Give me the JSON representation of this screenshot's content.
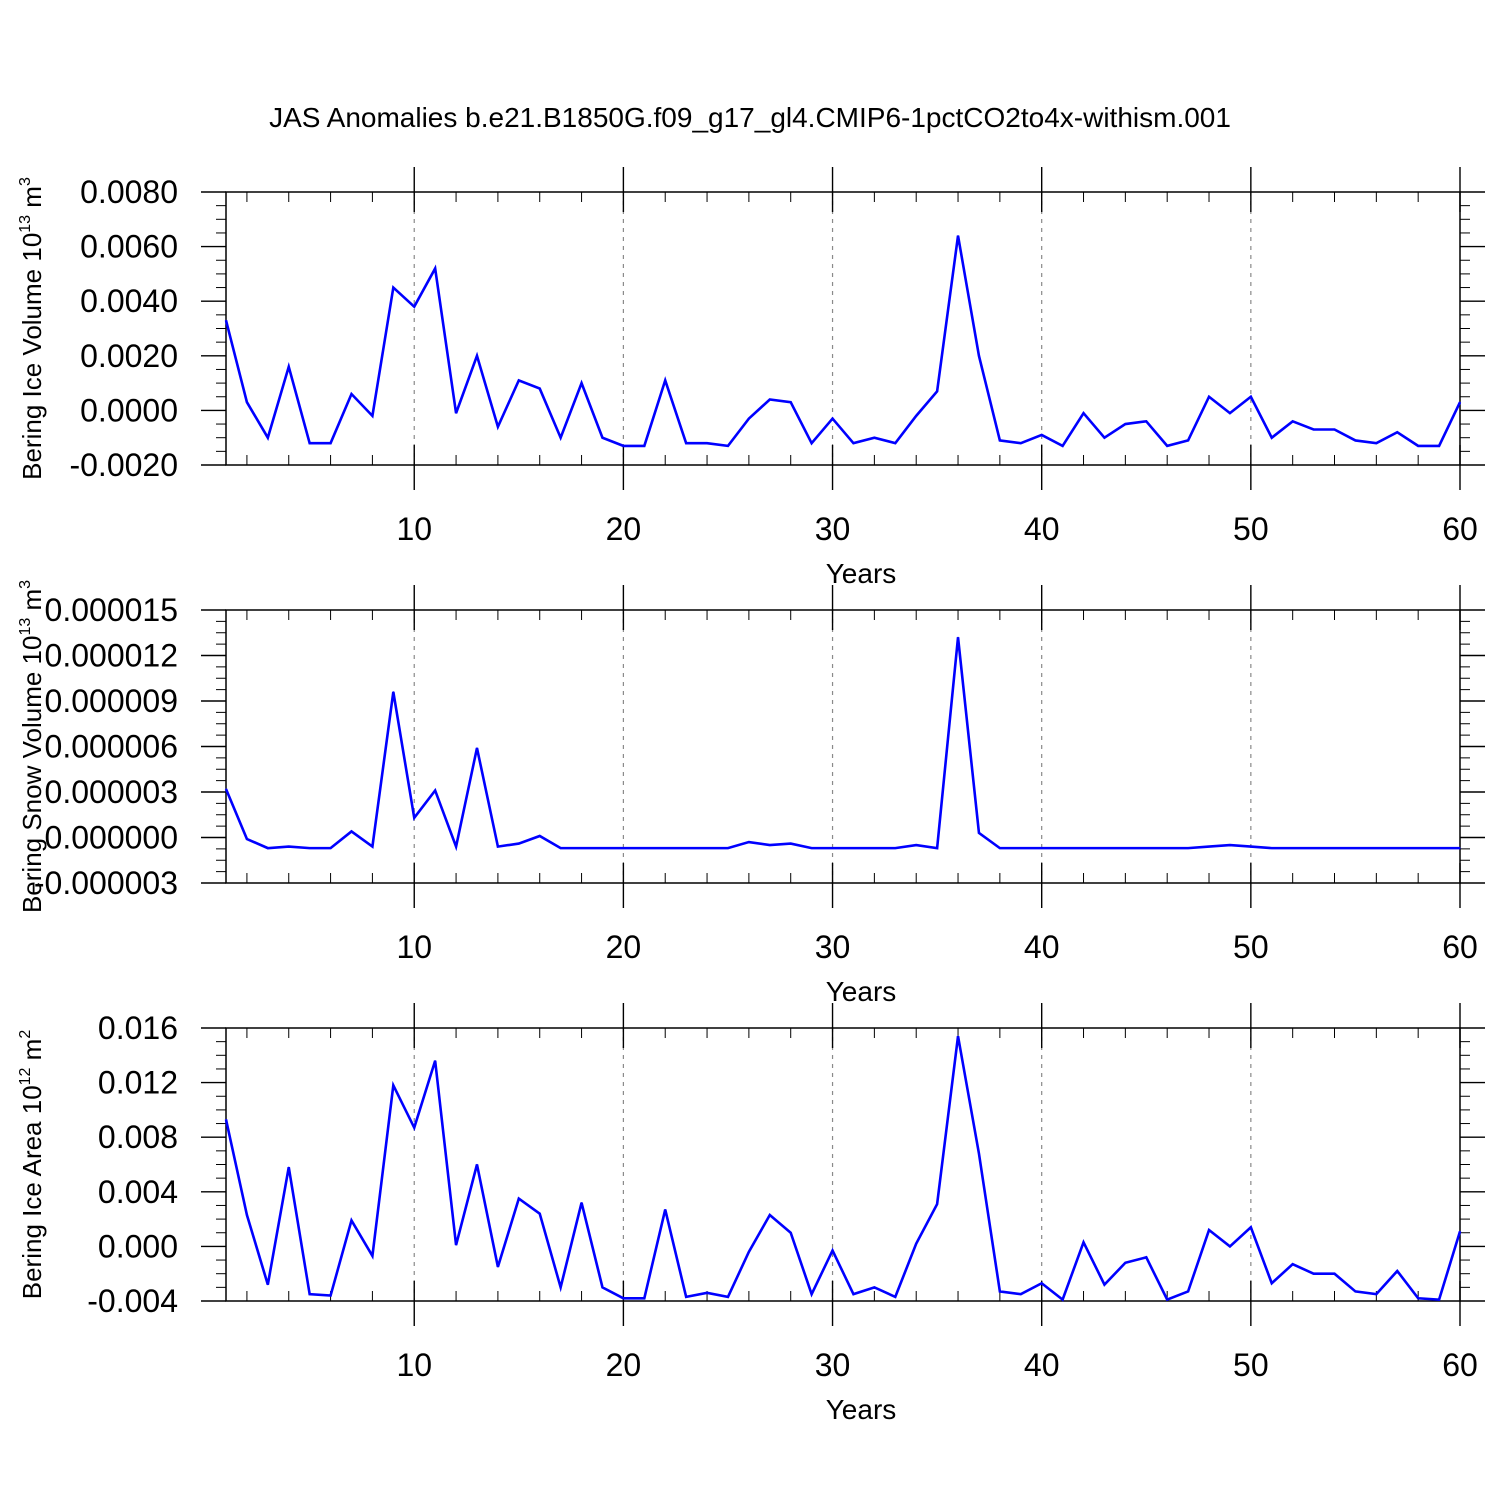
{
  "figure": {
    "title": "JAS Anomalies b.e21.B1850G.f09_g17_gl4.CMIP6-1pctCO2to4x-withism.001"
  },
  "chart_data": [
    {
      "type": "line",
      "title": "",
      "xlabel": "Years",
      "ylabel": {
        "main": "Bering Ice Volume 10",
        "exponent": "13",
        "unit": " m",
        "unit_exponent": "3"
      },
      "xlim": [
        1,
        60
      ],
      "ylim": [
        -0.002,
        0.008
      ],
      "x_ticks": [
        10,
        20,
        30,
        40,
        50,
        60
      ],
      "x_tick_labels": [
        "10",
        "20",
        "30",
        "40",
        "50",
        "60"
      ],
      "y_ticks": [
        -0.002,
        0,
        0.002,
        0.004,
        0.006,
        0.008
      ],
      "y_tick_labels": [
        "-0.0020",
        "0.0000",
        "0.0020",
        "0.0040",
        "0.0060",
        "0.0080"
      ],
      "y_minor_step": 0.0005,
      "x_minor_step": 2,
      "grid": "vertical dashed at major x ticks",
      "line_color": "#0000ff",
      "series": [
        {
          "x": [
            1,
            2,
            3,
            4,
            5,
            6,
            7,
            8,
            9,
            10,
            11,
            12,
            13,
            14,
            15,
            16,
            17,
            18,
            19,
            20,
            21,
            22,
            23,
            24,
            25,
            26,
            27,
            28,
            29,
            30,
            31,
            32,
            33,
            34,
            35,
            36,
            37,
            38,
            39,
            40,
            41,
            42,
            43,
            44,
            45,
            46,
            47,
            48,
            49,
            50,
            51,
            52,
            53,
            54,
            55,
            56,
            57,
            58,
            59,
            60
          ],
          "values": [
            0.0033,
            0.0003,
            -0.001,
            0.0016,
            -0.0012,
            -0.0012,
            0.0006,
            -0.0002,
            0.0045,
            0.0038,
            0.0052,
            -0.0001,
            0.002,
            -0.0006,
            0.0011,
            0.0008,
            -0.001,
            0.001,
            -0.001,
            -0.0013,
            -0.0013,
            0.0011,
            -0.0012,
            -0.0012,
            -0.0013,
            -0.0003,
            0.0004,
            0.0003,
            -0.0012,
            -0.0003,
            -0.0012,
            -0.001,
            -0.0012,
            -0.0002,
            0.0007,
            0.0064,
            0.002,
            -0.0011,
            -0.0012,
            -0.0009,
            -0.0013,
            -0.0001,
            -0.001,
            -0.0005,
            -0.0004,
            -0.0013,
            -0.0011,
            0.0005,
            -0.0001,
            0.0005,
            -0.001,
            -0.0004,
            -0.0007,
            -0.0007,
            -0.0011,
            -0.0012,
            -0.0008,
            -0.0013,
            -0.0013,
            0.0003
          ]
        }
      ]
    },
    {
      "type": "line",
      "title": "",
      "xlabel": "Years",
      "ylabel": {
        "main": "Bering Snow Volume 10",
        "exponent": "13",
        "unit": " m",
        "unit_exponent": "3"
      },
      "xlim": [
        1,
        60
      ],
      "ylim": [
        -3e-06,
        1.5e-05
      ],
      "x_ticks": [
        10,
        20,
        30,
        40,
        50,
        60
      ],
      "x_tick_labels": [
        "10",
        "20",
        "30",
        "40",
        "50",
        "60"
      ],
      "y_ticks": [
        -3e-06,
        0,
        3e-06,
        6e-06,
        9e-06,
        1.2e-05,
        1.5e-05
      ],
      "y_tick_labels": [
        "-0.000003",
        "0.000000",
        "0.000003",
        "0.000006",
        "0.000009",
        "0.000012",
        "0.000015"
      ],
      "y_minor_step": 7.5e-07,
      "x_minor_step": 2,
      "grid": "vertical dashed at major x ticks",
      "line_color": "#0000ff",
      "series": [
        {
          "x": [
            1,
            2,
            3,
            4,
            5,
            6,
            7,
            8,
            9,
            10,
            11,
            12,
            13,
            14,
            15,
            16,
            17,
            18,
            19,
            20,
            21,
            22,
            23,
            24,
            25,
            26,
            27,
            28,
            29,
            30,
            31,
            32,
            33,
            34,
            35,
            36,
            37,
            38,
            39,
            40,
            41,
            42,
            43,
            44,
            45,
            46,
            47,
            48,
            49,
            50,
            51,
            52,
            53,
            54,
            55,
            56,
            57,
            58,
            59,
            60
          ],
          "values": [
            3.2e-06,
            -1e-07,
            -7e-07,
            -6e-07,
            -7e-07,
            -7e-07,
            4e-07,
            -6e-07,
            9.6e-06,
            1.3e-06,
            3.1e-06,
            -6e-07,
            5.9e-06,
            -6e-07,
            -4e-07,
            1e-07,
            -7e-07,
            -7e-07,
            -7e-07,
            -7e-07,
            -7e-07,
            -7e-07,
            -7e-07,
            -7e-07,
            -7e-07,
            -3e-07,
            -5e-07,
            -4e-07,
            -7e-07,
            -7e-07,
            -7e-07,
            -7e-07,
            -7e-07,
            -5e-07,
            -7e-07,
            1.32e-05,
            3e-07,
            -7e-07,
            -7e-07,
            -7e-07,
            -7e-07,
            -7e-07,
            -7e-07,
            -7e-07,
            -7e-07,
            -7e-07,
            -7e-07,
            -6e-07,
            -5e-07,
            -6e-07,
            -7e-07,
            -7e-07,
            -7e-07,
            -7e-07,
            -7e-07,
            -7e-07,
            -7e-07,
            -7e-07,
            -7e-07,
            -7e-07
          ]
        }
      ]
    },
    {
      "type": "line",
      "title": "",
      "xlabel": "Years",
      "ylabel": {
        "main": "Bering Ice Area 10",
        "exponent": "12",
        "unit": " m",
        "unit_exponent": "2"
      },
      "xlim": [
        1,
        60
      ],
      "ylim": [
        -0.004,
        0.016
      ],
      "x_ticks": [
        10,
        20,
        30,
        40,
        50,
        60
      ],
      "x_tick_labels": [
        "10",
        "20",
        "30",
        "40",
        "50",
        "60"
      ],
      "y_ticks": [
        -0.004,
        0,
        0.004,
        0.008,
        0.012,
        0.016
      ],
      "y_tick_labels": [
        "-0.004",
        "0.000",
        "0.004",
        "0.008",
        "0.012",
        "0.016"
      ],
      "y_minor_step": 0.001,
      "x_minor_step": 2,
      "grid": "vertical dashed at major x ticks",
      "line_color": "#0000ff",
      "series": [
        {
          "x": [
            1,
            2,
            3,
            4,
            5,
            6,
            7,
            8,
            9,
            10,
            11,
            12,
            13,
            14,
            15,
            16,
            17,
            18,
            19,
            20,
            21,
            22,
            23,
            24,
            25,
            26,
            27,
            28,
            29,
            30,
            31,
            32,
            33,
            34,
            35,
            36,
            37,
            38,
            39,
            40,
            41,
            42,
            43,
            44,
            45,
            46,
            47,
            48,
            49,
            50,
            51,
            52,
            53,
            54,
            55,
            56,
            57,
            58,
            59,
            60
          ],
          "values": [
            0.0093,
            0.0023,
            -0.0028,
            0.0058,
            -0.0035,
            -0.0036,
            0.0019,
            -0.0007,
            0.0118,
            0.0087,
            0.0136,
            0.0001,
            0.006,
            -0.0015,
            0.0035,
            0.0024,
            -0.003,
            0.0032,
            -0.003,
            -0.0038,
            -0.0038,
            0.0027,
            -0.0037,
            -0.0034,
            -0.0037,
            -0.0004,
            0.0023,
            0.001,
            -0.0035,
            -0.0003,
            -0.0035,
            -0.003,
            -0.0037,
            0.0002,
            0.0031,
            0.0154,
            0.0068,
            -0.0033,
            -0.0035,
            -0.0027,
            -0.0039,
            0.0003,
            -0.0028,
            -0.0012,
            -0.0008,
            -0.0039,
            -0.0033,
            0.0012,
            0,
            0.0014,
            -0.0027,
            -0.0013,
            -0.002,
            -0.002,
            -0.0033,
            -0.0035,
            -0.0018,
            -0.0038,
            -0.0039,
            0.0011
          ]
        }
      ]
    }
  ]
}
